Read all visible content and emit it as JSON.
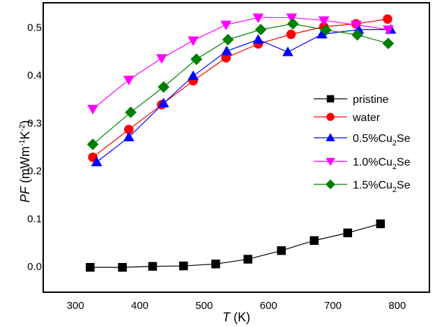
{
  "chart_data": {
    "type": "line",
    "title": "",
    "xlabel": {
      "italic": "T",
      "rest": " (K)"
    },
    "ylabel": {
      "italic": "PF",
      "rest": " (mWm",
      "sup1": "-1",
      "mid": "K",
      "sup2": "-2",
      "end": ")"
    },
    "xlim": [
      250,
      850
    ],
    "ylim": [
      -0.055,
      0.55
    ],
    "xticks": [
      300,
      400,
      500,
      600,
      700,
      800
    ],
    "xtick_labels": [
      "300",
      "400",
      "500",
      "600",
      "700",
      "800"
    ],
    "yticks": [
      0.0,
      0.1,
      0.2,
      0.3,
      0.4,
      0.5
    ],
    "ytick_labels": [
      "0.0",
      "0.1",
      "0.2",
      "0.3",
      "0.4",
      "0.5"
    ],
    "grid": false,
    "legend_position": "center-right",
    "series": [
      {
        "name": "pristine",
        "label_main": "pristine",
        "label_sub": "",
        "label_tail": "",
        "color": "#000000",
        "marker": "square",
        "x": [
          323,
          373,
          420,
          468,
          518,
          568,
          620,
          671,
          723,
          774
        ],
        "y": [
          -0.003,
          -0.003,
          -0.001,
          0.0,
          0.004,
          0.014,
          0.032,
          0.053,
          0.069,
          0.088
        ]
      },
      {
        "name": "water",
        "label_main": "water",
        "label_sub": "",
        "label_tail": "",
        "color": "#ff0000",
        "marker": "circle",
        "x": [
          327,
          383,
          434,
          483,
          534,
          584,
          635,
          686,
          736,
          785
        ],
        "y": [
          0.227,
          0.285,
          0.337,
          0.387,
          0.435,
          0.464,
          0.484,
          0.5,
          0.506,
          0.516
        ]
      },
      {
        "name": "0.5%Cu2Se",
        "label_main": "0.5%Cu",
        "label_sub": "2",
        "label_tail": "Se",
        "color": "#0000ff",
        "marker": "triangle-up",
        "x": [
          333,
          383,
          437,
          483,
          535,
          584,
          630,
          683,
          740,
          790
        ],
        "y": [
          0.217,
          0.269,
          0.34,
          0.397,
          0.449,
          0.473,
          0.447,
          0.484,
          0.494,
          0.494
        ]
      },
      {
        "name": "1.0%Cu2Se",
        "label_main": "1.0%Cu",
        "label_sub": "2",
        "label_tail": "Se",
        "color": "#ff00ff",
        "marker": "triangle-down",
        "x": [
          327,
          383,
          434,
          483,
          534,
          584,
          636,
          686,
          736,
          786
        ],
        "y": [
          0.328,
          0.389,
          0.434,
          0.471,
          0.504,
          0.519,
          0.519,
          0.513,
          0.504,
          0.494
        ]
      },
      {
        "name": "1.5%Cu2Se",
        "label_main": "1.5%Cu",
        "label_sub": "2",
        "label_tail": "Se",
        "color": "#008000",
        "marker": "diamond",
        "x": [
          327,
          386,
          437,
          488,
          537,
          588,
          638,
          689,
          738,
          786
        ],
        "y": [
          0.254,
          0.321,
          0.374,
          0.432,
          0.473,
          0.494,
          0.506,
          0.493,
          0.483,
          0.465
        ]
      }
    ]
  }
}
